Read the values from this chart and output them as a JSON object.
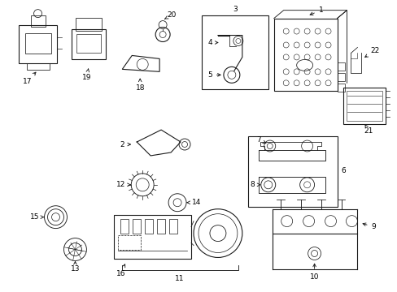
{
  "bg_color": "#ffffff",
  "line_color": "#1a1a1a",
  "text_color": "#000000",
  "lw": 0.8,
  "fontsize": 6.5
}
